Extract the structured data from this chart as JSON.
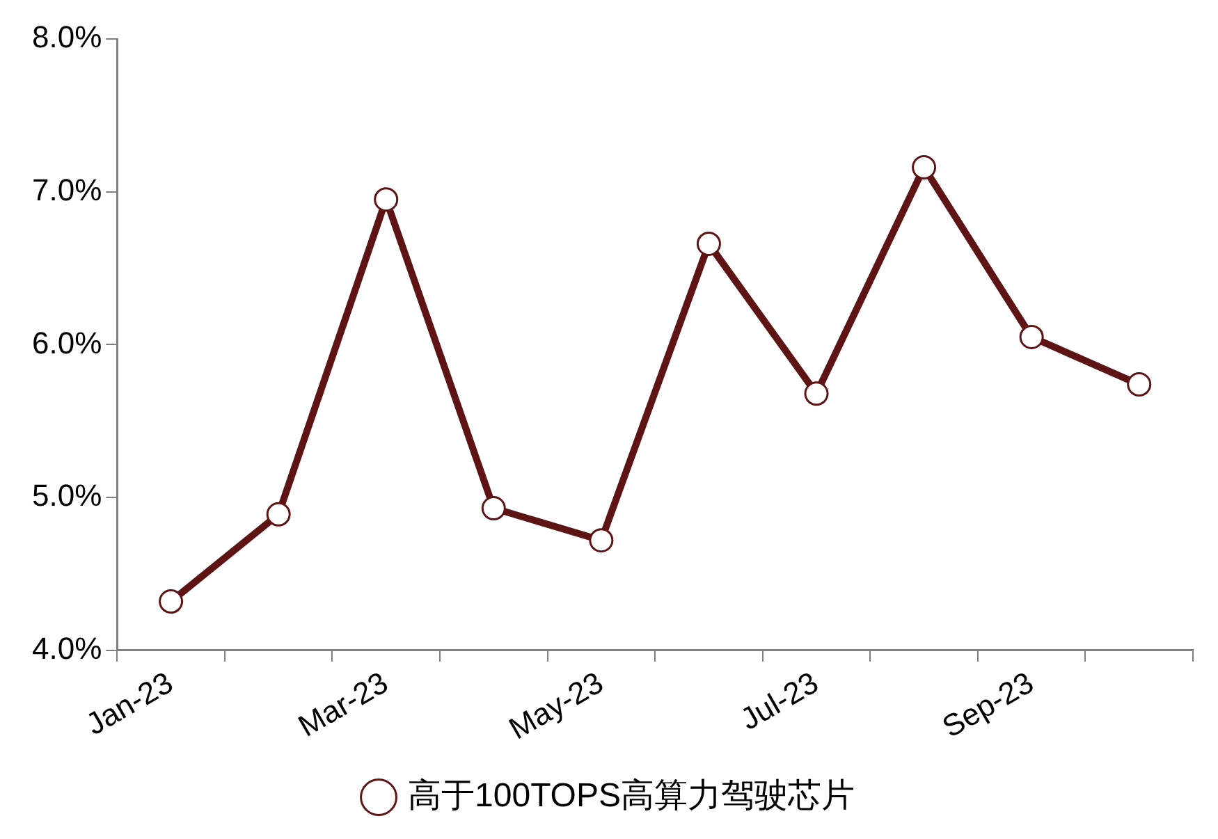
{
  "chart_data": {
    "type": "line",
    "categories": [
      "Jan-23",
      null,
      "Mar-23",
      null,
      "May-23",
      null,
      "Jul-23",
      null,
      "Sep-23",
      null
    ],
    "series": [
      {
        "name": "高于100TOPS高算力驾驶芯片",
        "color": "#5e1414",
        "values": [
          4.32,
          4.89,
          6.95,
          4.93,
          4.72,
          6.66,
          5.68,
          7.16,
          6.05,
          5.74
        ]
      }
    ],
    "ylim": [
      4,
      8
    ],
    "yticks": [
      {
        "value": 4,
        "label": "4.0%"
      },
      {
        "value": 5,
        "label": "5.0%"
      },
      {
        "value": 6,
        "label": "6.0%"
      },
      {
        "value": 7,
        "label": "7.0%"
      },
      {
        "value": 8,
        "label": "8.0%"
      }
    ],
    "grid": false,
    "legend": "bottom",
    "marker": "circle",
    "line_style": "solid"
  }
}
